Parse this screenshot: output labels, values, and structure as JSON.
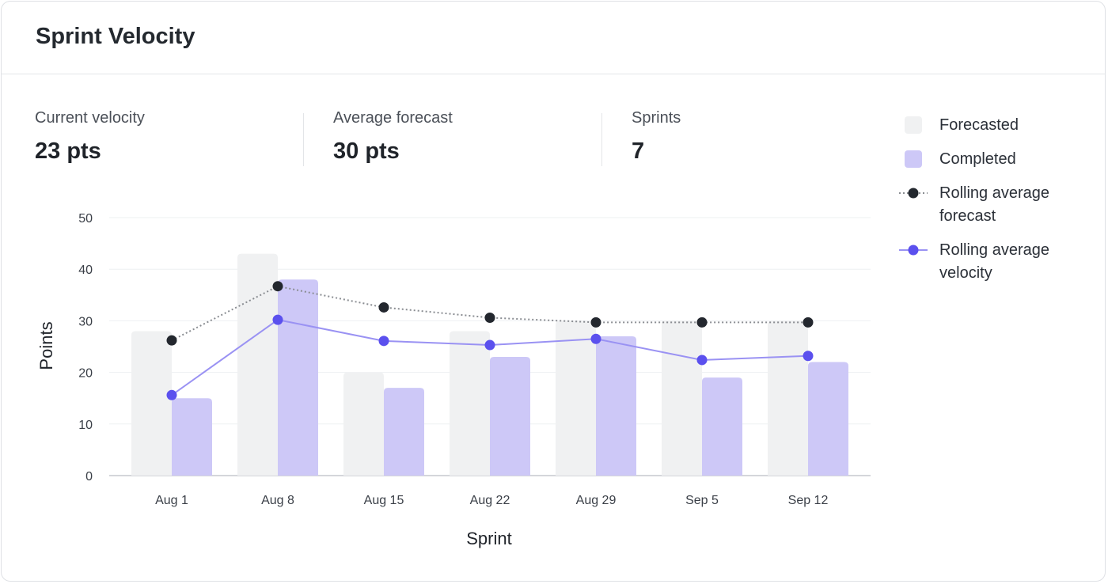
{
  "header": {
    "title": "Sprint Velocity"
  },
  "stats": [
    {
      "label": "Current velocity",
      "value": "23 pts"
    },
    {
      "label": "Average forecast",
      "value": "30 pts"
    },
    {
      "label": "Sprints",
      "value": "7"
    }
  ],
  "legend": [
    {
      "label": "Forecasted"
    },
    {
      "label": "Completed"
    },
    {
      "label": "Rolling average forecast"
    },
    {
      "label": "Rolling average velocity"
    }
  ],
  "colors": {
    "forecasted": "#f0f1f2",
    "completed": "#cdc8f7",
    "rolling_forecast": "#23272e",
    "rolling_velocity": "#5b50ee",
    "rolling_velocity_line": "#9a92f3"
  },
  "chart_data": {
    "type": "bar",
    "xlabel": "Sprint",
    "ylabel": "Points",
    "ylim": [
      0,
      50
    ],
    "yticks": [
      "0",
      "10",
      "20",
      "30",
      "40",
      "50"
    ],
    "grid": true,
    "legend_position": "right",
    "categories": [
      "Aug 1",
      "Aug 8",
      "Aug 15",
      "Aug 22",
      "Aug 29",
      "Sep 5",
      "Sep 12"
    ],
    "series": [
      {
        "name": "Forecasted",
        "kind": "bar",
        "values": [
          28,
          43,
          20,
          28,
          30,
          30,
          30
        ]
      },
      {
        "name": "Completed",
        "kind": "bar",
        "values": [
          15,
          38,
          17,
          23,
          27,
          19,
          22
        ]
      },
      {
        "name": "Rolling average forecast",
        "kind": "line",
        "style": "dotted",
        "values": [
          26.2,
          36.7,
          32.6,
          30.6,
          29.7,
          29.7,
          29.7
        ]
      },
      {
        "name": "Rolling average velocity",
        "kind": "line",
        "style": "solid",
        "values": [
          15.6,
          30.2,
          26.1,
          25.3,
          26.5,
          22.4,
          23.2
        ]
      }
    ]
  }
}
